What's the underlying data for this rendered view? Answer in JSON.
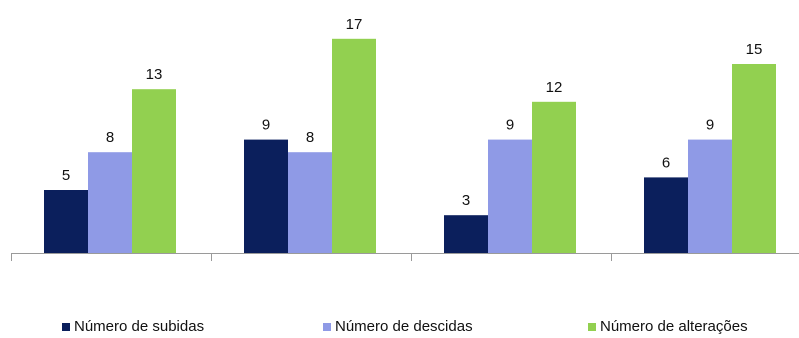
{
  "chart_data": {
    "type": "bar",
    "categories": [
      "",
      "",
      "",
      ""
    ],
    "series": [
      {
        "name": "Número de subidas",
        "color": "#0b1f5c",
        "values": [
          5,
          9,
          3,
          6
        ]
      },
      {
        "name": "Número de descidas",
        "color": "#8f9ae6",
        "values": [
          8,
          8,
          9,
          9
        ]
      },
      {
        "name": "Número de alterações",
        "color": "#92d050",
        "values": [
          13,
          17,
          12,
          15
        ]
      }
    ],
    "title": "",
    "xlabel": "",
    "ylabel": "",
    "ylim": [
      0,
      18
    ],
    "grid": false,
    "legend": "bottom",
    "axis_color": "#9a9a9a"
  }
}
